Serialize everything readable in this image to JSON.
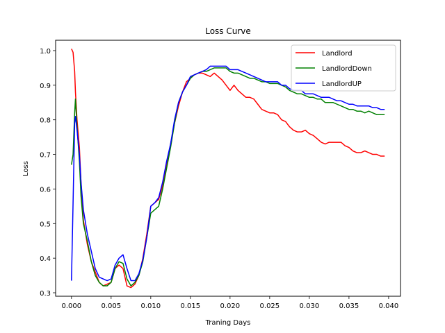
{
  "chart_data": {
    "type": "line",
    "title": "Loss Curve",
    "xlabel": "Traning Days",
    "ylabel": "Loss",
    "xlim": [
      -0.002,
      0.0415
    ],
    "ylim": [
      0.29,
      1.03
    ],
    "x_ticks": [
      0.0,
      0.005,
      0.01,
      0.015,
      0.02,
      0.025,
      0.03,
      0.035,
      0.04
    ],
    "x_tick_labels": [
      "0.000",
      "0.005",
      "0.010",
      "0.015",
      "0.020",
      "0.025",
      "0.030",
      "0.035",
      "0.040"
    ],
    "y_ticks": [
      0.3,
      0.4,
      0.5,
      0.6,
      0.7,
      0.8,
      0.9,
      1.0
    ],
    "y_tick_labels": [
      "0.3",
      "0.4",
      "0.5",
      "0.6",
      "0.7",
      "0.8",
      "0.9",
      "1.0"
    ],
    "grid": false,
    "legend_position": "top-right",
    "series": [
      {
        "name": "Landlord",
        "color": "#ff0000",
        "x": [
          0.0,
          0.0002,
          0.0004,
          0.0005,
          0.0007,
          0.001,
          0.0012,
          0.0015,
          0.002,
          0.0025,
          0.003,
          0.0035,
          0.004,
          0.0045,
          0.005,
          0.0055,
          0.006,
          0.0065,
          0.007,
          0.0075,
          0.008,
          0.0085,
          0.009,
          0.0095,
          0.01,
          0.0105,
          0.011,
          0.0115,
          0.012,
          0.0125,
          0.013,
          0.0135,
          0.014,
          0.0145,
          0.015,
          0.0155,
          0.016,
          0.0165,
          0.017,
          0.0175,
          0.018,
          0.0185,
          0.019,
          0.0195,
          0.02,
          0.0205,
          0.021,
          0.0215,
          0.022,
          0.0225,
          0.023,
          0.0235,
          0.024,
          0.0245,
          0.025,
          0.0255,
          0.026,
          0.0265,
          0.027,
          0.0275,
          0.028,
          0.0285,
          0.029,
          0.0295,
          0.03,
          0.0305,
          0.031,
          0.0315,
          0.032,
          0.0325,
          0.033,
          0.0335,
          0.034,
          0.0345,
          0.035,
          0.0355,
          0.036,
          0.0365,
          0.037,
          0.0375,
          0.038,
          0.0385,
          0.039,
          0.0395
        ],
        "values": [
          1.005,
          0.995,
          0.94,
          0.88,
          0.8,
          0.72,
          0.62,
          0.51,
          0.44,
          0.39,
          0.36,
          0.33,
          0.32,
          0.325,
          0.33,
          0.37,
          0.38,
          0.37,
          0.32,
          0.315,
          0.325,
          0.35,
          0.4,
          0.47,
          0.55,
          0.56,
          0.57,
          0.61,
          0.67,
          0.73,
          0.79,
          0.84,
          0.88,
          0.91,
          0.92,
          0.93,
          0.935,
          0.935,
          0.93,
          0.925,
          0.935,
          0.925,
          0.915,
          0.9,
          0.885,
          0.9,
          0.885,
          0.875,
          0.865,
          0.865,
          0.86,
          0.845,
          0.83,
          0.825,
          0.82,
          0.82,
          0.815,
          0.8,
          0.795,
          0.78,
          0.77,
          0.765,
          0.765,
          0.77,
          0.76,
          0.755,
          0.745,
          0.735,
          0.73,
          0.735,
          0.735,
          0.735,
          0.735,
          0.725,
          0.72,
          0.71,
          0.705,
          0.705,
          0.71,
          0.705,
          0.7,
          0.7,
          0.695,
          0.695
        ]
      },
      {
        "name": "LandlordDown",
        "color": "#008000",
        "x": [
          0.0,
          0.0002,
          0.0004,
          0.0005,
          0.0007,
          0.001,
          0.0012,
          0.0015,
          0.002,
          0.0025,
          0.003,
          0.0035,
          0.004,
          0.0045,
          0.005,
          0.0055,
          0.006,
          0.0065,
          0.007,
          0.0075,
          0.008,
          0.0085,
          0.009,
          0.0095,
          0.01,
          0.0105,
          0.011,
          0.0115,
          0.012,
          0.0125,
          0.013,
          0.0135,
          0.014,
          0.0145,
          0.015,
          0.0155,
          0.016,
          0.0165,
          0.017,
          0.0175,
          0.018,
          0.0185,
          0.019,
          0.0195,
          0.02,
          0.0205,
          0.021,
          0.0215,
          0.022,
          0.0225,
          0.023,
          0.0235,
          0.024,
          0.0245,
          0.025,
          0.0255,
          0.026,
          0.0265,
          0.027,
          0.0275,
          0.028,
          0.0285,
          0.029,
          0.0295,
          0.03,
          0.0305,
          0.031,
          0.0315,
          0.032,
          0.0325,
          0.033,
          0.0335,
          0.034,
          0.0345,
          0.035,
          0.0355,
          0.036,
          0.0365,
          0.037,
          0.0375,
          0.038,
          0.0385,
          0.039,
          0.0395
        ],
        "values": [
          0.67,
          0.7,
          0.82,
          0.86,
          0.78,
          0.68,
          0.58,
          0.5,
          0.45,
          0.39,
          0.35,
          0.33,
          0.32,
          0.32,
          0.33,
          0.37,
          0.39,
          0.385,
          0.34,
          0.32,
          0.33,
          0.35,
          0.39,
          0.46,
          0.53,
          0.54,
          0.55,
          0.6,
          0.66,
          0.72,
          0.79,
          0.85,
          0.88,
          0.9,
          0.92,
          0.93,
          0.935,
          0.94,
          0.94,
          0.945,
          0.95,
          0.95,
          0.95,
          0.95,
          0.94,
          0.935,
          0.935,
          0.93,
          0.925,
          0.92,
          0.92,
          0.915,
          0.91,
          0.91,
          0.905,
          0.905,
          0.905,
          0.9,
          0.895,
          0.885,
          0.88,
          0.875,
          0.875,
          0.87,
          0.865,
          0.865,
          0.86,
          0.86,
          0.85,
          0.85,
          0.85,
          0.845,
          0.84,
          0.835,
          0.83,
          0.83,
          0.825,
          0.825,
          0.82,
          0.825,
          0.82,
          0.815,
          0.815,
          0.815
        ]
      },
      {
        "name": "LandlordUP",
        "color": "#0000ff",
        "x": [
          0.0,
          0.0002,
          0.0004,
          0.0005,
          0.0007,
          0.001,
          0.0012,
          0.0015,
          0.002,
          0.0025,
          0.003,
          0.0035,
          0.004,
          0.0045,
          0.005,
          0.0055,
          0.006,
          0.0065,
          0.007,
          0.0075,
          0.008,
          0.0085,
          0.009,
          0.0095,
          0.01,
          0.0105,
          0.011,
          0.0115,
          0.012,
          0.0125,
          0.013,
          0.0135,
          0.014,
          0.0145,
          0.015,
          0.0155,
          0.016,
          0.0165,
          0.017,
          0.0175,
          0.018,
          0.0185,
          0.019,
          0.0195,
          0.02,
          0.0205,
          0.021,
          0.0215,
          0.022,
          0.0225,
          0.023,
          0.0235,
          0.024,
          0.0245,
          0.025,
          0.0255,
          0.026,
          0.0265,
          0.027,
          0.0275,
          0.028,
          0.0285,
          0.029,
          0.0295,
          0.03,
          0.0305,
          0.031,
          0.0315,
          0.032,
          0.0325,
          0.033,
          0.0335,
          0.034,
          0.0345,
          0.035,
          0.0355,
          0.036,
          0.0365,
          0.037,
          0.0375,
          0.038,
          0.0385,
          0.039,
          0.0395
        ],
        "values": [
          0.335,
          0.56,
          0.79,
          0.81,
          0.77,
          0.7,
          0.62,
          0.54,
          0.47,
          0.42,
          0.37,
          0.345,
          0.34,
          0.335,
          0.34,
          0.38,
          0.4,
          0.41,
          0.37,
          0.335,
          0.335,
          0.355,
          0.395,
          0.46,
          0.55,
          0.56,
          0.575,
          0.62,
          0.68,
          0.73,
          0.8,
          0.85,
          0.88,
          0.9,
          0.925,
          0.93,
          0.935,
          0.94,
          0.945,
          0.955,
          0.955,
          0.955,
          0.955,
          0.955,
          0.945,
          0.945,
          0.945,
          0.94,
          0.935,
          0.93,
          0.925,
          0.92,
          0.915,
          0.91,
          0.91,
          0.91,
          0.91,
          0.9,
          0.9,
          0.89,
          0.885,
          0.885,
          0.885,
          0.875,
          0.875,
          0.875,
          0.87,
          0.865,
          0.865,
          0.865,
          0.86,
          0.855,
          0.855,
          0.85,
          0.845,
          0.845,
          0.84,
          0.84,
          0.84,
          0.84,
          0.835,
          0.835,
          0.83,
          0.83
        ]
      }
    ]
  }
}
